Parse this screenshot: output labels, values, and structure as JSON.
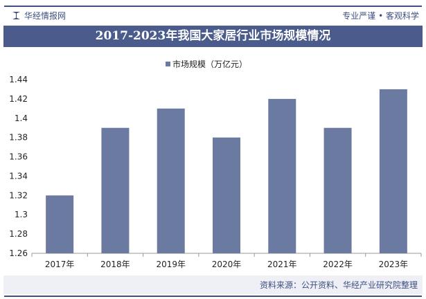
{
  "header": {
    "brand": "华经情报网",
    "slogan": "专业严谨 • 客观科学"
  },
  "footer": {
    "source": "资料来源：公开资料、华经产业研究院整理"
  },
  "colors": {
    "bar": "#6a7aa0",
    "accent": "#3e4f80"
  },
  "chart_data": {
    "type": "bar",
    "title": "2017-2023年我国大家居行业市场规模情况",
    "categories": [
      "2017年",
      "2018年",
      "2019年",
      "2020年",
      "2021年",
      "2022年",
      "2023年"
    ],
    "series": [
      {
        "name": "市场规模（万亿元）",
        "values": [
          1.32,
          1.39,
          1.41,
          1.38,
          1.42,
          1.39,
          1.43
        ]
      }
    ],
    "ylim": [
      1.26,
      1.44
    ],
    "yticks": [
      "1.26",
      "1.28",
      "1.3",
      "1.32",
      "1.34",
      "1.36",
      "1.38",
      "1.4",
      "1.42",
      "1.44"
    ],
    "grid": false,
    "legend": "top-center"
  }
}
